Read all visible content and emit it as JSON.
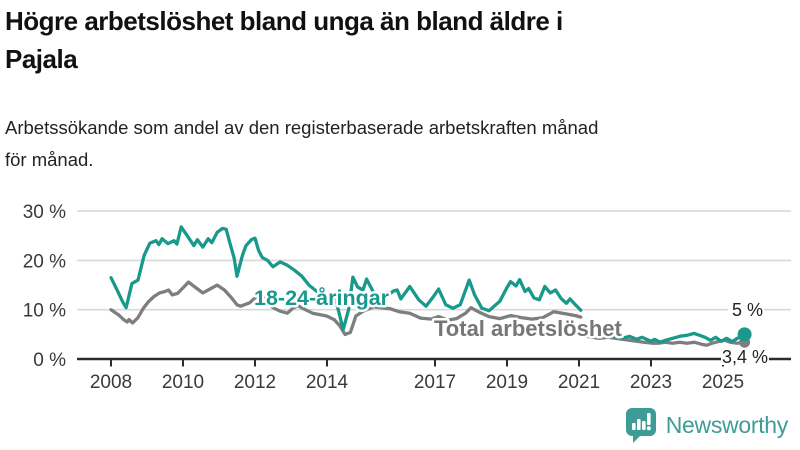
{
  "header": {
    "title_lines": [
      "Högre arbetslöshet bland unga än bland äldre i",
      "Pajala"
    ],
    "subtitle_lines": [
      "Arbetssökande som andel av den registerbaserade arbetskraften månad",
      "för månad."
    ]
  },
  "footer": {
    "logo_text": "Newsworthy",
    "logo_color": "#3e9c97"
  },
  "colors": {
    "youth_line": "#18998c",
    "total_line": "#7e7e7e",
    "total_label": "#767676",
    "gridline": "#d8d8d8",
    "axis": "#2b2b2b",
    "tick_text": "#3a3a3a",
    "end_label_text": "#222222"
  },
  "chart_data": {
    "type": "line",
    "unit": "%",
    "grid": true,
    "xlim": [
      2007.3,
      2026.9
    ],
    "ylim": [
      0,
      32
    ],
    "x_ticks": [
      2008,
      2010,
      2012,
      2014,
      2017,
      2019,
      2021,
      2023,
      2025
    ],
    "y_ticks": [
      {
        "value": 0,
        "label": "0 %"
      },
      {
        "value": 10,
        "label": "10 %"
      },
      {
        "value": 20,
        "label": "20 %"
      },
      {
        "value": 30,
        "label": "30 %"
      }
    ],
    "series": [
      {
        "name": "Total arbetslöshet",
        "label_text": "Total arbetslöshet",
        "end_label": "3,4 %",
        "end_value": 3.4,
        "color": "#7e7e7e",
        "label_color": "#767676",
        "segments": [
          [
            [
              2008.0,
              10
            ],
            [
              2008.2,
              9
            ],
            [
              2008.35,
              8
            ],
            [
              2008.45,
              7.5
            ],
            [
              2008.5,
              8
            ],
            [
              2008.6,
              7.3
            ],
            [
              2008.75,
              8.4
            ],
            [
              2008.9,
              10.3
            ],
            [
              2009.05,
              11.7
            ],
            [
              2009.2,
              12.7
            ],
            [
              2009.35,
              13.4
            ],
            [
              2009.5,
              13.7
            ],
            [
              2009.6,
              14
            ],
            [
              2009.7,
              13
            ],
            [
              2009.85,
              13.3
            ],
            [
              2010.05,
              14.8
            ],
            [
              2010.15,
              15.6
            ],
            [
              2010.35,
              14.5
            ],
            [
              2010.55,
              13.4
            ],
            [
              2010.75,
              14.2
            ],
            [
              2010.95,
              15
            ],
            [
              2011.15,
              14
            ],
            [
              2011.35,
              12.4
            ],
            [
              2011.5,
              11
            ],
            [
              2011.6,
              10.7
            ],
            [
              2011.85,
              11.4
            ],
            [
              2012.0,
              12.4
            ],
            [
              2012.2,
              12.7
            ],
            [
              2012.5,
              10.4
            ],
            [
              2012.7,
              9.7
            ],
            [
              2012.9,
              9.3
            ],
            [
              2013.05,
              10.3
            ],
            [
              2013.2,
              10.8
            ],
            [
              2013.4,
              10
            ],
            [
              2013.6,
              9.3
            ],
            [
              2013.8,
              9
            ],
            [
              2014.0,
              8.7
            ],
            [
              2014.2,
              8
            ],
            [
              2014.35,
              6.8
            ],
            [
              2014.5,
              5
            ],
            [
              2014.65,
              5.4
            ],
            [
              2014.8,
              8.7
            ],
            [
              2015.0,
              9.7
            ],
            [
              2015.3,
              10.6
            ],
            [
              2015.5,
              10.4
            ],
            [
              2015.75,
              10.2
            ],
            [
              2016.0,
              9.6
            ],
            [
              2016.3,
              9.3
            ],
            [
              2016.6,
              8.3
            ],
            [
              2016.9,
              8.1
            ],
            [
              2017.1,
              8.6
            ],
            [
              2017.35,
              7.9
            ],
            [
              2017.6,
              8.2
            ],
            [
              2017.85,
              9.3
            ],
            [
              2018.0,
              10.4
            ],
            [
              2018.2,
              9.6
            ],
            [
              2018.5,
              8.6
            ],
            [
              2018.8,
              8.2
            ],
            [
              2019.1,
              8.8
            ],
            [
              2019.4,
              8.4
            ],
            [
              2019.7,
              8.1
            ],
            [
              2020.0,
              8.4
            ],
            [
              2020.3,
              9.6
            ],
            [
              2020.6,
              9.2
            ],
            [
              2020.9,
              8.8
            ],
            [
              2021.05,
              8.5
            ]
          ],
          [
            [
              2021.2,
              4.6
            ],
            [
              2021.35,
              4.4
            ],
            [
              2021.55,
              4.2
            ],
            [
              2021.8,
              4.4
            ],
            [
              2022.0,
              4.2
            ],
            [
              2022.2,
              4
            ],
            [
              2022.4,
              3.8
            ],
            [
              2022.6,
              3.6
            ],
            [
              2022.8,
              3.4
            ],
            [
              2023.05,
              3.2
            ],
            [
              2023.2,
              3.2
            ],
            [
              2023.4,
              3.4
            ],
            [
              2023.6,
              3.2
            ],
            [
              2023.8,
              3.4
            ],
            [
              2024.0,
              3.2
            ],
            [
              2024.2,
              3.4
            ],
            [
              2024.4,
              3
            ],
            [
              2024.55,
              2.8
            ],
            [
              2024.7,
              3.2
            ],
            [
              2024.9,
              3.6
            ],
            [
              2025.05,
              3.8
            ],
            [
              2025.2,
              3.4
            ],
            [
              2025.4,
              3.2
            ],
            [
              2025.6,
              3.4
            ]
          ]
        ]
      },
      {
        "name": "18-24-åringar",
        "label_text": "18-24-åringar",
        "end_label": "5 %",
        "end_value": 5,
        "color": "#18998c",
        "label_color": "#18998c",
        "segments": [
          [
            [
              2008.0,
              16.5
            ],
            [
              2008.17,
              14
            ],
            [
              2008.33,
              11.5
            ],
            [
              2008.42,
              10.4
            ],
            [
              2008.58,
              15.3
            ],
            [
              2008.75,
              16
            ],
            [
              2008.92,
              21
            ],
            [
              2009.08,
              23.5
            ],
            [
              2009.25,
              24
            ],
            [
              2009.33,
              23.2
            ],
            [
              2009.42,
              24.4
            ],
            [
              2009.58,
              23.4
            ],
            [
              2009.75,
              24
            ],
            [
              2009.83,
              23.3
            ],
            [
              2009.95,
              26.8
            ],
            [
              2010.1,
              25.2
            ],
            [
              2010.3,
              23
            ],
            [
              2010.4,
              24.2
            ],
            [
              2010.55,
              22.7
            ],
            [
              2010.7,
              24.4
            ],
            [
              2010.8,
              23.6
            ],
            [
              2010.95,
              25.7
            ],
            [
              2011.1,
              26.5
            ],
            [
              2011.2,
              26.3
            ],
            [
              2011.3,
              23.6
            ],
            [
              2011.42,
              20.5
            ],
            [
              2011.5,
              16.8
            ],
            [
              2011.65,
              21
            ],
            [
              2011.75,
              23
            ],
            [
              2011.9,
              24.2
            ],
            [
              2012.0,
              24.5
            ],
            [
              2012.1,
              22
            ],
            [
              2012.2,
              20.6
            ],
            [
              2012.35,
              20
            ],
            [
              2012.5,
              18.7
            ],
            [
              2012.7,
              19.7
            ],
            [
              2012.9,
              19
            ],
            [
              2013.1,
              18
            ],
            [
              2013.3,
              16.8
            ],
            [
              2013.5,
              15
            ],
            [
              2013.75,
              13.5
            ],
            [
              2014.0,
              13
            ],
            [
              2014.25,
              11.8
            ],
            [
              2014.45,
              6
            ],
            [
              2014.6,
              10
            ],
            [
              2014.72,
              16.6
            ],
            [
              2014.85,
              14.6
            ],
            [
              2015.0,
              14
            ],
            [
              2015.1,
              16.2
            ],
            [
              2015.3,
              13.4
            ],
            [
              2015.45,
              11.8
            ],
            [
              2015.55,
              11.2
            ],
            [
              2015.7,
              13
            ],
            [
              2015.85,
              13.8
            ],
            [
              2015.95,
              14
            ],
            [
              2016.05,
              12.2
            ],
            [
              2016.3,
              14.7
            ],
            [
              2016.55,
              12
            ],
            [
              2016.75,
              10.7
            ],
            [
              2016.95,
              12.6
            ],
            [
              2017.1,
              14.2
            ],
            [
              2017.3,
              11
            ],
            [
              2017.5,
              10.3
            ],
            [
              2017.7,
              11
            ],
            [
              2017.95,
              16
            ],
            [
              2018.1,
              13
            ],
            [
              2018.3,
              10.3
            ],
            [
              2018.5,
              9.8
            ],
            [
              2018.8,
              11.7
            ],
            [
              2019.0,
              14.5
            ],
            [
              2019.1,
              15.7
            ],
            [
              2019.25,
              14.8
            ],
            [
              2019.35,
              16.1
            ],
            [
              2019.5,
              13.7
            ],
            [
              2019.6,
              14.3
            ],
            [
              2019.75,
              12.4
            ],
            [
              2019.9,
              12
            ],
            [
              2020.05,
              14.7
            ],
            [
              2020.2,
              13.4
            ],
            [
              2020.35,
              14
            ],
            [
              2020.5,
              12.3
            ],
            [
              2020.65,
              11.3
            ],
            [
              2020.75,
              12.2
            ],
            [
              2020.9,
              11
            ],
            [
              2021.05,
              9.9
            ]
          ],
          [
            [
              2021.2,
              4.8
            ],
            [
              2021.35,
              4.6
            ],
            [
              2021.5,
              5
            ],
            [
              2021.6,
              5.5
            ],
            [
              2021.85,
              4.4
            ],
            [
              2022.05,
              4.8
            ],
            [
              2022.2,
              4.2
            ],
            [
              2022.4,
              4.6
            ],
            [
              2022.6,
              4
            ],
            [
              2022.75,
              4.4
            ],
            [
              2023.0,
              3.6
            ],
            [
              2023.1,
              4
            ],
            [
              2023.25,
              3.4
            ],
            [
              2023.4,
              3.8
            ],
            [
              2023.6,
              4.2
            ],
            [
              2023.8,
              4.6
            ],
            [
              2024.0,
              4.8
            ],
            [
              2024.2,
              5.2
            ],
            [
              2024.35,
              4.8
            ],
            [
              2024.5,
              4.4
            ],
            [
              2024.65,
              3.8
            ],
            [
              2024.8,
              4.4
            ],
            [
              2024.95,
              3.6
            ],
            [
              2025.1,
              4.2
            ],
            [
              2025.25,
              3.5
            ],
            [
              2025.4,
              4.2
            ],
            [
              2025.6,
              5
            ]
          ]
        ]
      }
    ]
  }
}
